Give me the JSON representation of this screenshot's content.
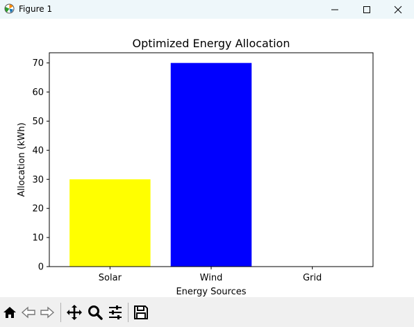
{
  "window": {
    "title": "Figure 1"
  },
  "chart_data": {
    "type": "bar",
    "title": "Optimized Energy Allocation",
    "xlabel": "Energy Sources",
    "ylabel": "Allocation (kWh)",
    "categories": [
      "Solar",
      "Wind",
      "Grid"
    ],
    "values": [
      30,
      70,
      0
    ],
    "colors": [
      "#ffff00",
      "#0000ff",
      "#ffffff"
    ],
    "ylim": [
      0,
      73.5
    ],
    "yticks": [
      0,
      10,
      20,
      30,
      40,
      50,
      60,
      70
    ],
    "grid": false
  },
  "toolbar": {
    "buttons": [
      {
        "name": "home-icon",
        "label": "Home"
      },
      {
        "name": "back-icon",
        "label": "Back"
      },
      {
        "name": "forward-icon",
        "label": "Forward"
      },
      {
        "name": "pan-icon",
        "label": "Pan"
      },
      {
        "name": "zoom-icon",
        "label": "Zoom"
      },
      {
        "name": "configure-subplots-icon",
        "label": "Configure subplots"
      },
      {
        "name": "save-icon",
        "label": "Save"
      }
    ]
  }
}
